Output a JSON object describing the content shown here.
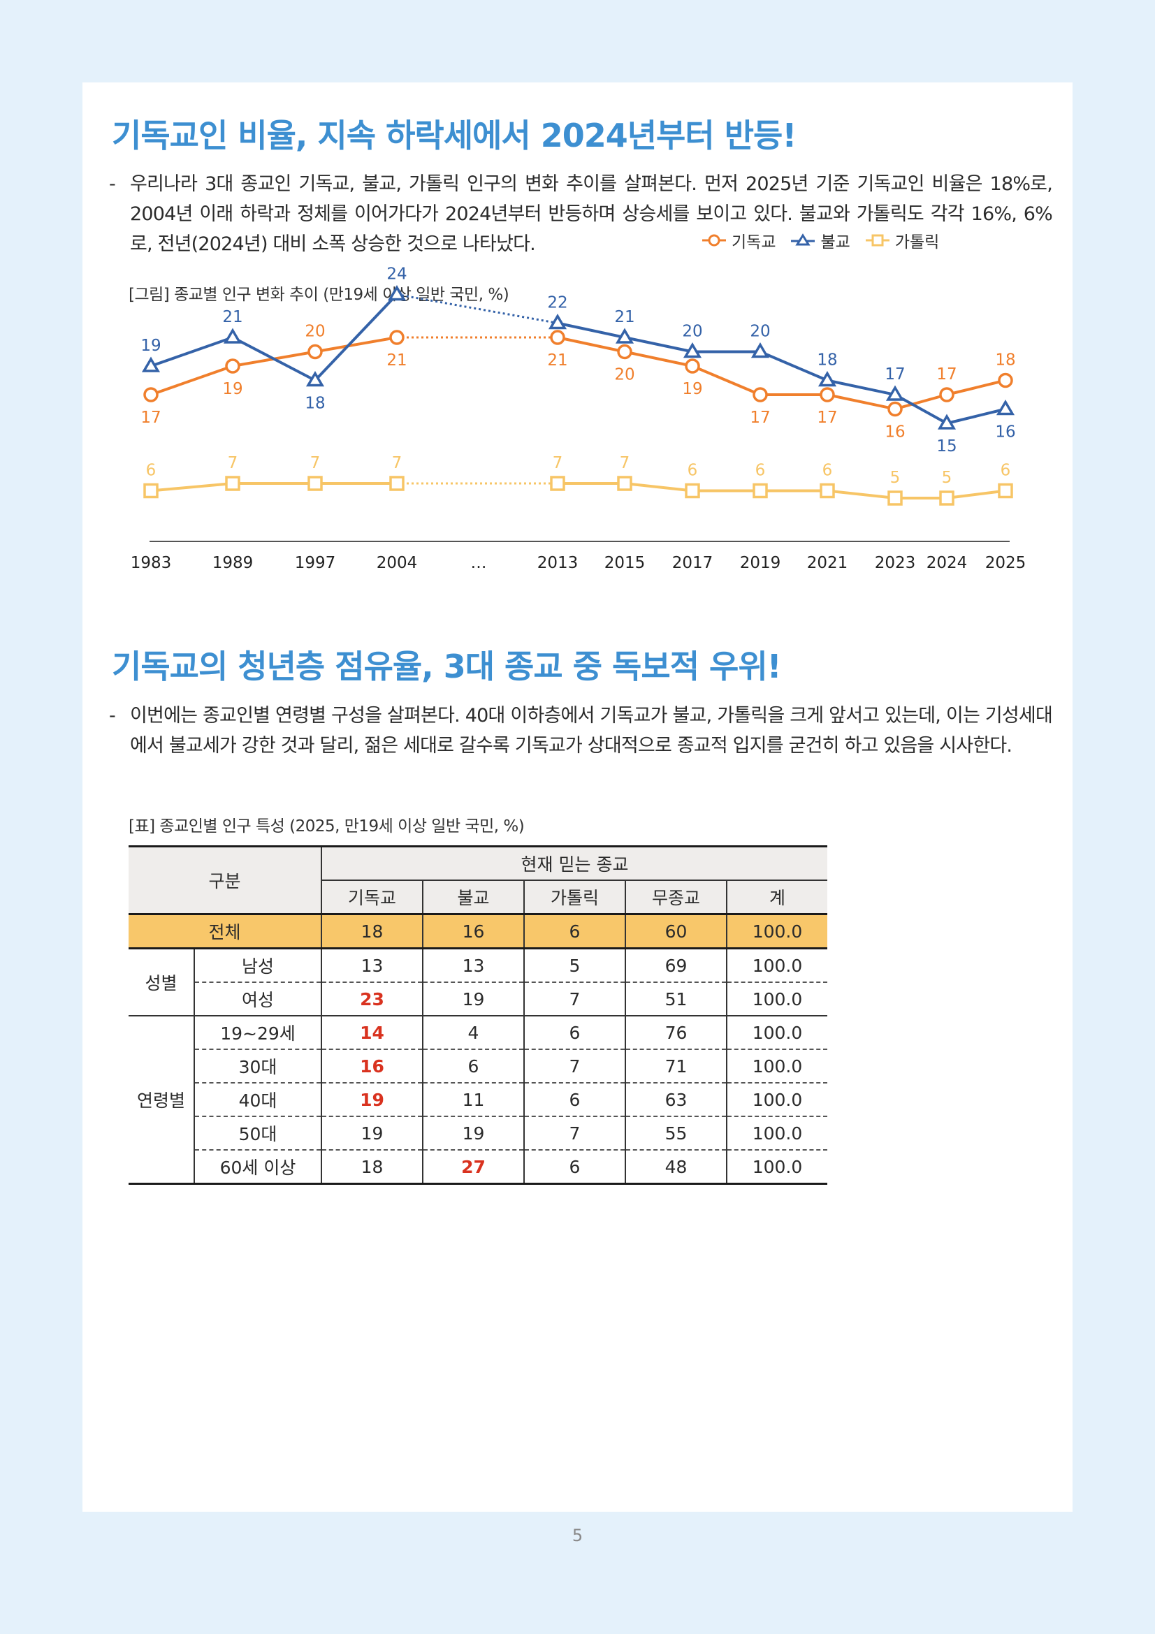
{
  "section1": {
    "title": "기독교인 비율, 지속 하락세에서 2024년부터 반등!",
    "bullet": "-",
    "paragraph": "우리나라 3대 종교인 기독교, 불교, 가톨릭 인구의 변화 추이를 살펴본다. 먼저 2025년 기준 기독교인 비율은 18%로, 2004년 이래 하락과 정체를 이어가다가 2024년부터 반등하며 상승세를 보이고 있다. 불교와 가톨릭도 각각 16%, 6%로, 전년(2024년) 대비 소폭 상승한 것으로 나타났다.",
    "figure_caption": "[그림] 종교별 인구 변화 추이 (만19세 이상 일반 국민, %)"
  },
  "chart_data": {
    "type": "line",
    "x": [
      "1983",
      "1989",
      "1997",
      "2004",
      "…",
      "2013",
      "2015",
      "2017",
      "2019",
      "2021",
      "2023",
      "2024",
      "2025"
    ],
    "series": [
      {
        "name": "기독교",
        "values": [
          17,
          19,
          20,
          21,
          null,
          21,
          20,
          19,
          17,
          17,
          16,
          17,
          18
        ],
        "color": "#f07f2c",
        "marker": "circle"
      },
      {
        "name": "불교",
        "values": [
          19,
          21,
          18,
          24,
          null,
          22,
          21,
          20,
          20,
          18,
          17,
          15,
          16
        ],
        "color": "#3462a8",
        "marker": "triangle"
      },
      {
        "name": "가톨릭",
        "values": [
          6,
          7,
          7,
          7,
          null,
          7,
          7,
          6,
          6,
          6,
          5,
          5,
          6
        ],
        "color": "#f7c566",
        "marker": "square"
      }
    ],
    "gap_style": "dotted",
    "legend_position": "top-right"
  },
  "section2": {
    "title": "기독교의 청년층 점유율, 3대 종교 중 독보적 우위!",
    "bullet": "-",
    "paragraph": "이번에는 종교인별 연령별 구성을 살펴본다. 40대 이하층에서 기독교가 불교, 가톨릭을 크게 앞서고 있는데, 이는 기성세대에서 불교세가 강한 것과 달리, 젊은 세대로 갈수록 기독교가 상대적으로 종교적 입지를 굳건히 하고 있음을 시사한다.",
    "table_caption": "[표] 종교인별 인구 특성 (2025, 만19세 이상 일반 국민, %)"
  },
  "table": {
    "corner": "구분",
    "group_header": "현재 믿는 종교",
    "columns": [
      "기독교",
      "불교",
      "가톨릭",
      "무종교",
      "계"
    ],
    "total": {
      "label": "전체",
      "values": [
        "18",
        "16",
        "6",
        "60",
        "100.0"
      ]
    },
    "gender": {
      "label": "성별",
      "rows": [
        {
          "label": "남성",
          "values": [
            "13",
            "13",
            "5",
            "69",
            "100.0"
          ]
        },
        {
          "label": "여성",
          "values": [
            "23",
            "19",
            "7",
            "51",
            "100.0"
          ]
        }
      ]
    },
    "age": {
      "label": "연령별",
      "rows": [
        {
          "label": "19~29세",
          "values": [
            "14",
            "4",
            "6",
            "76",
            "100.0"
          ]
        },
        {
          "label": "30대",
          "values": [
            "16",
            "6",
            "7",
            "71",
            "100.0"
          ]
        },
        {
          "label": "40대",
          "values": [
            "19",
            "11",
            "6",
            "63",
            "100.0"
          ]
        },
        {
          "label": "50대",
          "values": [
            "19",
            "19",
            "7",
            "55",
            "100.0"
          ]
        },
        {
          "label": "60세 이상",
          "values": [
            "18",
            "27",
            "6",
            "48",
            "100.0"
          ]
        }
      ]
    },
    "highlight_color": "#d9321f"
  },
  "page_number": "5"
}
